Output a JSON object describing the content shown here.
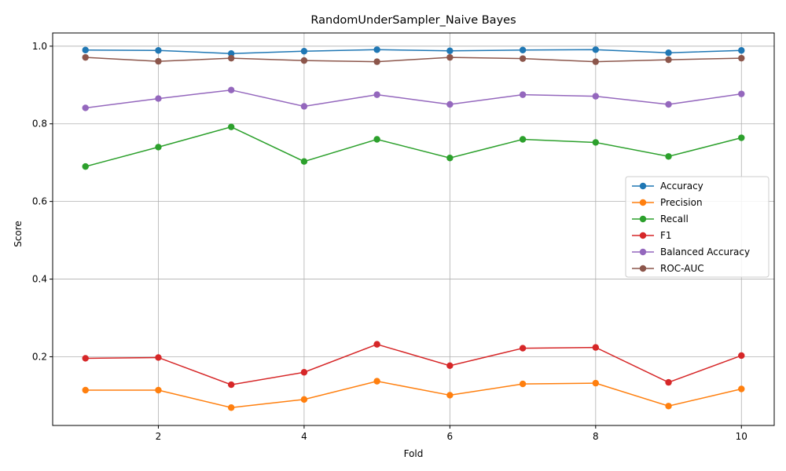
{
  "chart_data": {
    "type": "line",
    "title": "RandomUnderSampler_Naive Bayes",
    "xlabel": "Fold",
    "ylabel": "Score",
    "x": [
      1,
      2,
      3,
      4,
      5,
      6,
      7,
      8,
      9,
      10
    ],
    "xlim": [
      0.55,
      10.45
    ],
    "ylim": [
      0.023,
      1.034
    ],
    "xticks": [
      2,
      4,
      6,
      8,
      10
    ],
    "yticks": [
      0.2,
      0.4,
      0.6,
      0.8,
      1.0
    ],
    "ytick_labels": [
      "0.2",
      "0.4",
      "0.6",
      "0.8",
      "1.0"
    ],
    "grid": true,
    "legend_position": "center-right",
    "markers": "circle",
    "series": [
      {
        "name": "Accuracy",
        "color": "#1f77b4",
        "values": [
          0.99,
          0.989,
          0.981,
          0.987,
          0.991,
          0.988,
          0.99,
          0.991,
          0.983,
          0.989
        ]
      },
      {
        "name": "Precision",
        "color": "#ff7f0e",
        "values": [
          0.114,
          0.114,
          0.069,
          0.09,
          0.137,
          0.101,
          0.13,
          0.132,
          0.073,
          0.117
        ]
      },
      {
        "name": "Recall",
        "color": "#2ca02c",
        "values": [
          0.69,
          0.74,
          0.792,
          0.703,
          0.76,
          0.712,
          0.76,
          0.752,
          0.716,
          0.764
        ]
      },
      {
        "name": "F1",
        "color": "#d62728",
        "values": [
          0.196,
          0.198,
          0.128,
          0.16,
          0.232,
          0.177,
          0.222,
          0.224,
          0.134,
          0.203
        ]
      },
      {
        "name": "Balanced Accuracy",
        "color": "#9467bd",
        "values": [
          0.841,
          0.865,
          0.887,
          0.845,
          0.875,
          0.85,
          0.875,
          0.871,
          0.85,
          0.877
        ]
      },
      {
        "name": "ROC-AUC",
        "color": "#8c564b",
        "values": [
          0.971,
          0.961,
          0.969,
          0.963,
          0.96,
          0.971,
          0.968,
          0.96,
          0.965,
          0.969
        ]
      }
    ]
  }
}
